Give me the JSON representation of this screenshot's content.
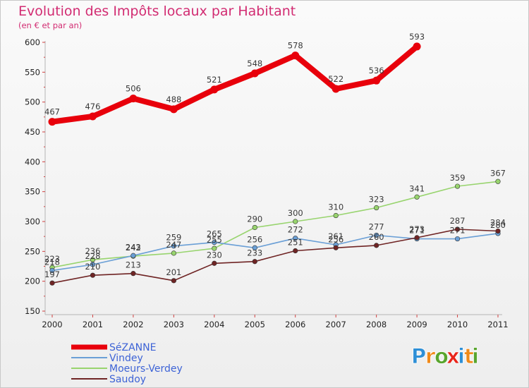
{
  "chart_data": {
    "type": "line",
    "title": "Evolution des Impôts locaux par Habitant",
    "subtitle": "(en € et par an)",
    "xlabel": "",
    "ylabel": "",
    "categories": [
      "2000",
      "2001",
      "2002",
      "2003",
      "2004",
      "2005",
      "2006",
      "2007",
      "2008",
      "2009",
      "2010",
      "2011"
    ],
    "ylim": [
      150,
      600
    ],
    "yticks": [
      150,
      200,
      250,
      300,
      350,
      400,
      450,
      500,
      550,
      600
    ],
    "grid": false,
    "legend_position": "bottom-left",
    "series": [
      {
        "name": "SéZANNE",
        "color": "#e8000b",
        "values": [
          467,
          476,
          506,
          488,
          521,
          548,
          578,
          522,
          536,
          593,
          null,
          null
        ]
      },
      {
        "name": "Vindey",
        "color": "#6a9fd6",
        "values": [
          218,
          228,
          243,
          259,
          265,
          256,
          272,
          261,
          277,
          271,
          271,
          280
        ]
      },
      {
        "name": "Moeurs-Verdey",
        "color": "#98d46e",
        "values": [
          223,
          236,
          242,
          247,
          255,
          290,
          300,
          310,
          323,
          341,
          359,
          367
        ]
      },
      {
        "name": "Saudoy",
        "color": "#6f2424",
        "values": [
          197,
          210,
          213,
          201,
          230,
          233,
          251,
          256,
          260,
          273,
          287,
          284
        ]
      }
    ]
  },
  "logo": {
    "letters": [
      "P",
      "r",
      "o",
      "x",
      "i",
      "t",
      "i"
    ],
    "colors": [
      "#2e8fd6",
      "#f08a1a",
      "#59a52e",
      "#e8251a",
      "#2e8fd6",
      "#f08a1a",
      "#59a52e"
    ]
  }
}
